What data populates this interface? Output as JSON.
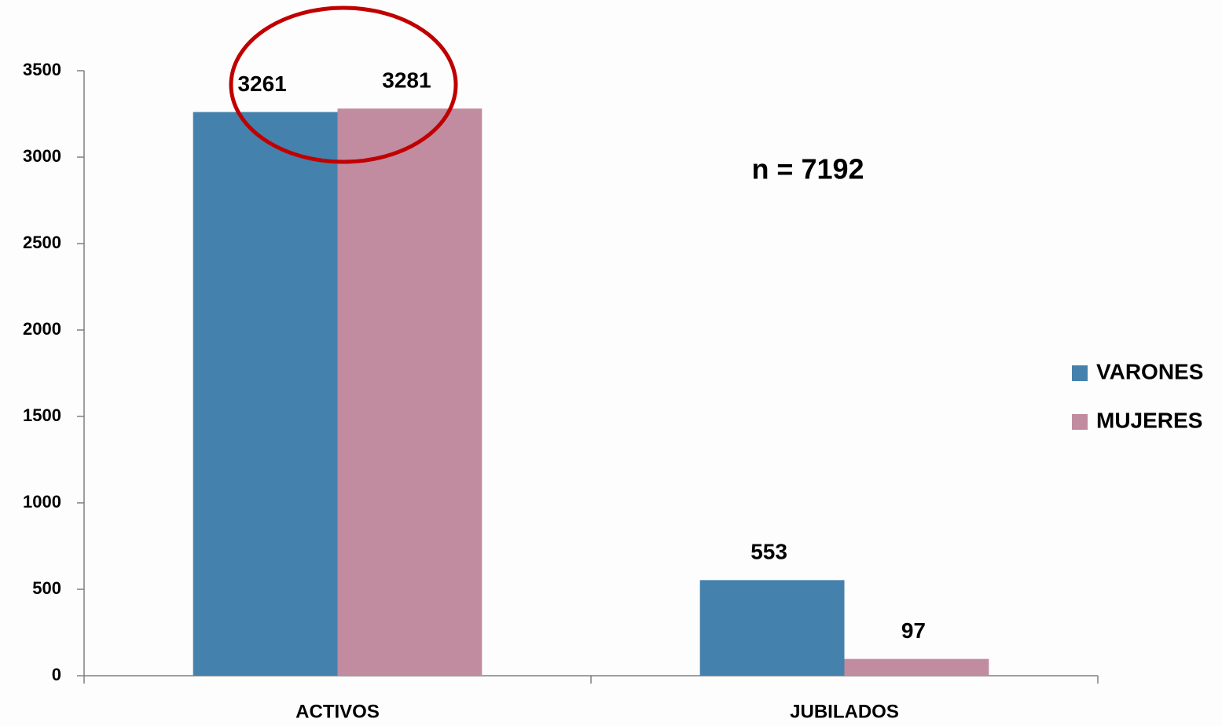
{
  "chart_data": {
    "type": "bar",
    "categories": [
      "ACTIVOS",
      "JUBILADOS"
    ],
    "series": [
      {
        "name": "VARONES",
        "color": "#4581ad",
        "values": [
          3261,
          553
        ]
      },
      {
        "name": "MUJERES",
        "color": "#c18ba0",
        "values": [
          3281,
          97
        ]
      }
    ],
    "ylim": [
      0,
      3500
    ],
    "yticks": [
      0,
      500,
      1000,
      1500,
      2000,
      2500,
      3000,
      3500
    ],
    "annotations": [
      "n = 7192"
    ],
    "legend": "right",
    "grid": false
  }
}
